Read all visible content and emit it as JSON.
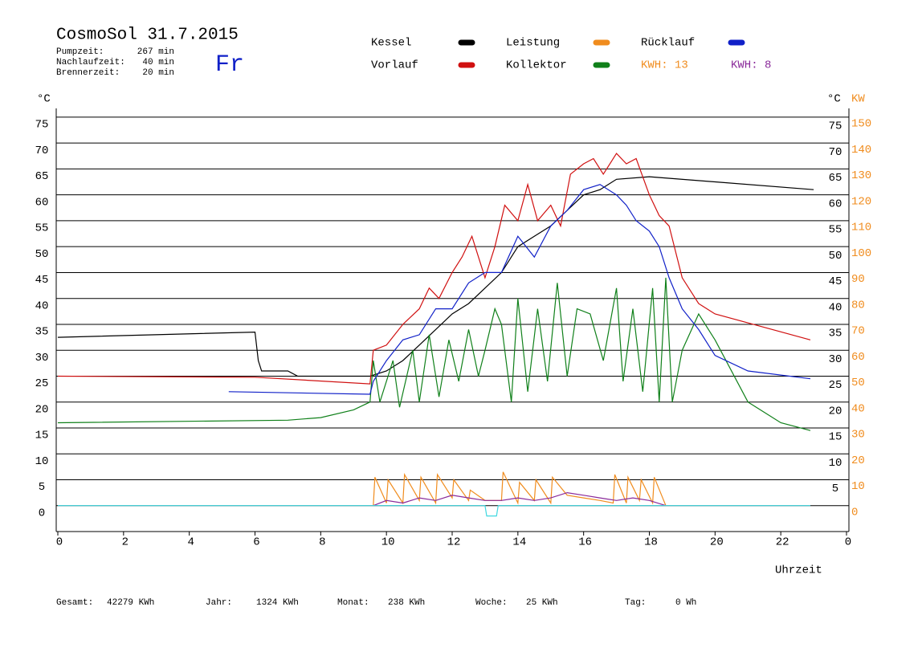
{
  "chart_data": {
    "type": "line",
    "title": "CosmoSol 31.7.2015",
    "weekday": "Fr",
    "info": [
      [
        "Pumpzeit:",
        "267 min"
      ],
      [
        "Nachlaufzeit:",
        "40 min"
      ],
      [
        "Brennerzeit:",
        "20 min"
      ]
    ],
    "kwh_labels": [
      {
        "text": "KWH: 13",
        "color": "#f08c1e"
      },
      {
        "text": "KWH: 8",
        "color": "#8a2a9a"
      }
    ],
    "y_unit": "°C",
    "y2_unit": "KW",
    "xlabel": "Uhrzeit",
    "totals": [
      [
        "Gesamt:",
        "42279 KWh"
      ],
      [
        "Jahr:",
        "1324 KWh"
      ],
      [
        "Monat:",
        "238 KWh"
      ],
      [
        "Woche:",
        "25 KWh"
      ],
      [
        "Tag:",
        "0 Wh"
      ]
    ],
    "xlim": [
      0,
      24
    ],
    "xticks": [
      0,
      2,
      4,
      6,
      8,
      10,
      12,
      14,
      16,
      18,
      20,
      22,
      {
        "value": 24,
        "label": "0"
      }
    ],
    "ylim": [
      -5,
      77
    ],
    "yticks": [
      0,
      5,
      10,
      15,
      20,
      25,
      30,
      35,
      40,
      45,
      50,
      55,
      60,
      65,
      70,
      75
    ],
    "yticks_right": [
      5,
      10,
      15,
      20,
      25,
      30,
      35,
      40,
      45,
      50,
      55,
      60,
      65,
      70,
      75
    ],
    "y2lim": [
      -10,
      154
    ],
    "y2ticks": [
      0,
      10,
      20,
      30,
      40,
      50,
      60,
      70,
      80,
      90,
      100,
      110,
      120,
      130,
      140,
      150
    ],
    "grid": true,
    "series": [
      {
        "name": "Kessel",
        "color": "#000000",
        "x": [
          0,
          6,
          6.1,
          6.2,
          7,
          7.3,
          9.5,
          10,
          10.5,
          11,
          11.5,
          12,
          12.5,
          13,
          13.5,
          14,
          14.5,
          15,
          15.5,
          16,
          16.5,
          17,
          18,
          20,
          23
        ],
        "values": [
          32.5,
          33.5,
          28,
          26,
          26,
          25,
          25,
          26,
          28,
          31,
          34,
          37,
          39,
          42,
          45,
          50,
          52,
          54,
          57,
          60,
          61,
          63,
          63.5,
          62.5,
          61
        ]
      },
      {
        "name": "Vorlauf",
        "color": "#d01010",
        "x": [
          0,
          6,
          9.5,
          9.6,
          10,
          10.5,
          11,
          11.3,
          11.6,
          12,
          12.3,
          12.6,
          13,
          13.3,
          13.6,
          14,
          14.3,
          14.6,
          15,
          15.3,
          15.6,
          16,
          16.3,
          16.6,
          17,
          17.3,
          17.6,
          18,
          18.3,
          18.6,
          19,
          19.5,
          20,
          22.9
        ],
        "values": [
          25,
          24.8,
          23.5,
          30,
          31,
          35,
          38,
          42,
          40,
          45,
          48,
          52,
          44,
          50,
          58,
          55,
          62,
          55,
          58,
          54,
          64,
          66,
          67,
          64,
          68,
          66,
          67,
          60,
          56,
          54,
          44,
          39,
          37,
          32
        ]
      },
      {
        "name": "Leistung",
        "color": "#f08c1e",
        "axis": "y2",
        "x": [
          9.6,
          9.65,
          10,
          10.05,
          10.5,
          10.55,
          11,
          11.05,
          11.5,
          11.55,
          12,
          12.05,
          12.5,
          12.55,
          13,
          13.5,
          13.55,
          14,
          14.05,
          14.5,
          14.55,
          15,
          15.05,
          15.5,
          16,
          16.5,
          16.9,
          16.95,
          17.3,
          17.35,
          17.7,
          17.75,
          18.1,
          18.15,
          18.5
        ],
        "values": [
          0,
          11,
          1,
          10,
          1,
          12,
          2,
          11,
          1,
          12,
          3,
          10,
          2,
          6,
          2,
          2,
          13,
          1,
          9,
          2,
          10,
          1,
          11,
          4,
          3,
          2,
          1,
          12,
          1,
          11,
          2,
          10,
          1,
          11,
          0
        ]
      },
      {
        "name": "Kollektor",
        "color": "#10801a",
        "x": [
          0,
          7,
          8,
          9,
          9.5,
          9.6,
          9.8,
          10.2,
          10.4,
          10.8,
          11,
          11.3,
          11.6,
          11.9,
          12.2,
          12.5,
          12.8,
          13,
          13.3,
          13.5,
          13.8,
          14,
          14.3,
          14.6,
          14.9,
          15.2,
          15.5,
          15.8,
          16.2,
          16.6,
          17,
          17.2,
          17.5,
          17.8,
          18.1,
          18.3,
          18.5,
          18.7,
          19,
          19.5,
          20,
          21,
          22,
          22.9
        ],
        "values": [
          16,
          16.5,
          17,
          18.5,
          20,
          28,
          20,
          28,
          19,
          30,
          20,
          33,
          21,
          32,
          24,
          34,
          25,
          30,
          38,
          35,
          20,
          40,
          22,
          38,
          24,
          43,
          25,
          38,
          37,
          28,
          42,
          24,
          38,
          22,
          42,
          20,
          44,
          20,
          30,
          37,
          32,
          20,
          16,
          14.5
        ]
      },
      {
        "name": "Rücklauf",
        "color": "#1020c8",
        "x": [
          5.2,
          9.5,
          9.6,
          10,
          10.5,
          11,
          11.5,
          12,
          12.5,
          13,
          13.5,
          14,
          14.5,
          15,
          15.5,
          16,
          16.5,
          17,
          17.3,
          17.6,
          18,
          18.3,
          18.6,
          19,
          19.5,
          20,
          21,
          22.9
        ],
        "values": [
          22,
          21.5,
          24,
          28,
          32,
          33,
          38,
          38,
          43,
          45,
          45,
          52,
          48,
          54,
          57,
          61,
          62,
          60,
          58,
          55,
          53,
          50,
          44,
          38,
          34,
          29,
          26,
          24.5
        ]
      },
      {
        "color": "#8a2a9a",
        "axis": "y2",
        "x": [
          9.6,
          10,
          10.5,
          11,
          11.5,
          12,
          12.5,
          13,
          13.5,
          14,
          14.5,
          15,
          15.5,
          16,
          16.5,
          17,
          17.5,
          18,
          18.5
        ],
        "values": [
          0,
          2,
          1,
          3,
          2,
          4,
          3,
          2,
          2,
          3,
          2,
          3,
          5,
          4,
          3,
          2,
          3,
          2,
          0
        ]
      },
      {
        "color": "#40d8e0",
        "x": [
          0,
          13.0,
          13.05,
          13.35,
          13.4,
          22.9
        ],
        "values": [
          0,
          0,
          -2,
          -2,
          0,
          0
        ]
      }
    ]
  }
}
